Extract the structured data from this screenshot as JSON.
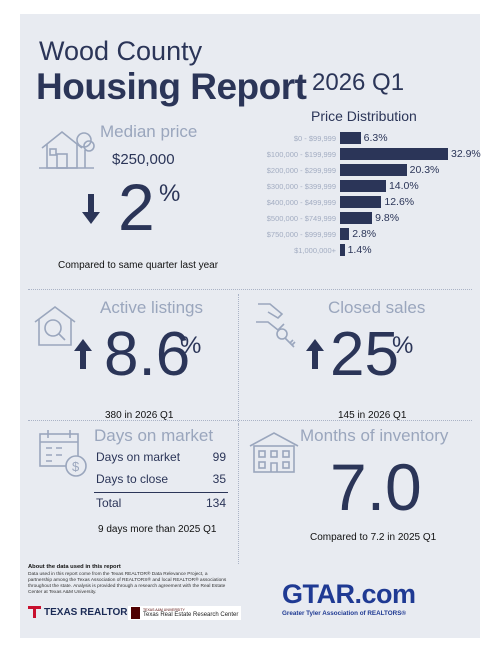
{
  "header": {
    "county": "Wood County",
    "report": "Housing Report",
    "quarter": "2026 Q1"
  },
  "price_distribution": {
    "title": "Price Distribution",
    "rows": [
      {
        "label": "$0 - $99,999",
        "value": "6.3%",
        "pct": 6.3
      },
      {
        "label": "$100,000 - $199,999",
        "value": "32.9%",
        "pct": 32.9
      },
      {
        "label": "$200,000 - $299,999",
        "value": "20.3%",
        "pct": 20.3
      },
      {
        "label": "$300,000 - $399,999",
        "value": "14.0%",
        "pct": 14.0
      },
      {
        "label": "$400,000 - $499,999",
        "value": "12.6%",
        "pct": 12.6
      },
      {
        "label": "$500,000 - $749,999",
        "value": "9.8%",
        "pct": 9.8
      },
      {
        "label": "$750,000 - $999,999",
        "value": "2.8%",
        "pct": 2.8
      },
      {
        "label": "$1,000,000+",
        "value": "1.4%",
        "pct": 1.4
      }
    ]
  },
  "median_price": {
    "title": "Median price",
    "price": "$250,000",
    "change": "2",
    "pct_sign": "%",
    "direction": "down",
    "note": "Compared to same quarter last year"
  },
  "active_listings": {
    "title": "Active listings",
    "change": "8.6",
    "pct_sign": "%",
    "direction": "up",
    "note": "380 in 2026 Q1"
  },
  "closed_sales": {
    "title": "Closed sales",
    "change": "25",
    "pct_sign": "%",
    "direction": "up",
    "note": "145 in 2026 Q1"
  },
  "days_on_market": {
    "title": "Days on market",
    "rows": [
      {
        "label": "Days on market",
        "value": "99"
      },
      {
        "label": "Days to close",
        "value": "35"
      }
    ],
    "total_label": "Total",
    "total_value": "134",
    "note": "9 days more than 2025 Q1"
  },
  "months_inventory": {
    "title": "Months of inventory",
    "value": "7.0",
    "note": "Compared to 7.2 in 2025 Q1"
  },
  "footer": {
    "heading": "About the data used in this report",
    "text": "Data used in this report come from the Texas REALTOR® Data Relevance Project, a partnership among the Texas Association of REALTORS® and local REALTOR® associations throughout the state. Analysis is provided through a research agreement with the Real Estate Center at Texas A&M University.",
    "texas_realtors": "TEXAS REALTORS",
    "tamu_small": "TEXAS A&M UNIVERSITY",
    "tamu_center": "Texas Real Estate Research Center",
    "gtar_logo": "GTAR.com",
    "gtar_sub": "Greater Tyler Association of REALTORS®"
  },
  "colors": {
    "navy": "#2b3558",
    "muted": "#9aa6bd",
    "panel": "#e8ebf1",
    "logo_red": "#c8102e",
    "logo_blue": "#1f3a93"
  }
}
